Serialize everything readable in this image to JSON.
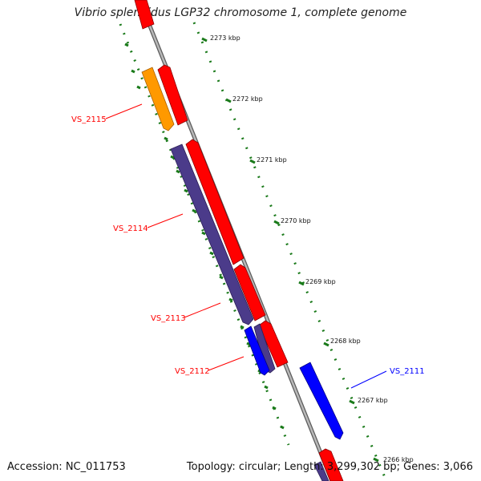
{
  "title": "Vibrio splendidus LGP32 chromosome 1, complete genome",
  "footer": {
    "accession": "Accession: NC_011753",
    "summary": "Topology: circular; Length: 3,299,302 bp; Genes: 3,066"
  },
  "colors": {
    "backbone": "#a0a0a0",
    "forward_cds": "#ff0000",
    "reverse_cds_purple": "#4b3b8a",
    "reverse_cds_blue": "#0000ff",
    "reverse_cds_orange": "#ff9900",
    "gc_track": "#1a7a1a",
    "label_red": "#ff0000",
    "label_blue": "#0000ff"
  },
  "scale_ticks": [
    {
      "label": "2273 kbp"
    },
    {
      "label": "2272 kbp"
    },
    {
      "label": "2271 kbp"
    },
    {
      "label": "2270 kbp"
    },
    {
      "label": "2269 kbp"
    },
    {
      "label": "2268 kbp"
    },
    {
      "label": "2267 kbp"
    },
    {
      "label": "2266 kbp"
    }
  ],
  "gene_labels": [
    {
      "name": "VS_2115",
      "color": "red"
    },
    {
      "name": "VS_2114",
      "color": "red"
    },
    {
      "name": "VS_2113",
      "color": "red"
    },
    {
      "name": "VS_2112",
      "color": "red"
    },
    {
      "name": "VS_2111",
      "color": "blue"
    }
  ]
}
